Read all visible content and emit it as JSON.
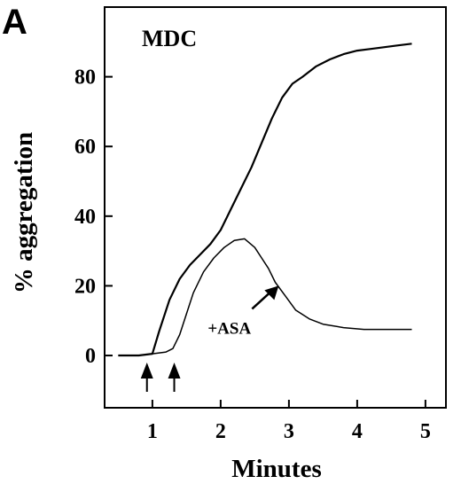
{
  "panel_label": "A",
  "chart_data": {
    "type": "line",
    "title": "MDC",
    "xlabel": "Minutes",
    "ylabel": "% aggregation",
    "xlim": [
      0.3,
      5.3
    ],
    "ylim": [
      -15,
      100
    ],
    "xticks": [
      1,
      2,
      3,
      4,
      5
    ],
    "yticks": [
      0,
      20,
      40,
      60,
      80
    ],
    "grid": false,
    "series": [
      {
        "x": [
          0.5,
          0.8,
          1.0,
          1.1,
          1.25,
          1.4,
          1.55,
          1.7,
          1.85,
          2.0,
          2.15,
          2.3,
          2.45,
          2.6,
          2.75,
          2.9,
          3.05,
          3.2,
          3.4,
          3.6,
          3.8,
          4.0,
          4.2,
          4.4,
          4.6,
          4.8
        ],
        "values": [
          0,
          0,
          0.5,
          7,
          16,
          22,
          26,
          29,
          32,
          36,
          42,
          48,
          54,
          61,
          68,
          74,
          78,
          80,
          83,
          85,
          86.5,
          87.5,
          88,
          88.5,
          89,
          89.5
        ]
      },
      {
        "x": [
          0.5,
          0.8,
          1.0,
          1.2,
          1.3,
          1.4,
          1.5,
          1.6,
          1.75,
          1.9,
          2.05,
          2.2,
          2.35,
          2.5,
          2.6,
          2.7,
          2.8,
          2.95,
          3.1,
          3.3,
          3.5,
          3.8,
          4.1,
          4.4,
          4.8
        ],
        "values": [
          0,
          0,
          0.5,
          1,
          2,
          6,
          12,
          18,
          24,
          28,
          31,
          33,
          33.5,
          31,
          28,
          25,
          21,
          17,
          13,
          10.5,
          9,
          8,
          7.5,
          7.5,
          7.5
        ]
      }
    ],
    "annotations": [
      {
        "text": "+ASA",
        "x": 2.85,
        "y": 20
      }
    ],
    "markers": [
      {
        "type": "up-arrow",
        "x": 0.92
      },
      {
        "type": "up-arrow",
        "x": 1.32
      }
    ]
  }
}
